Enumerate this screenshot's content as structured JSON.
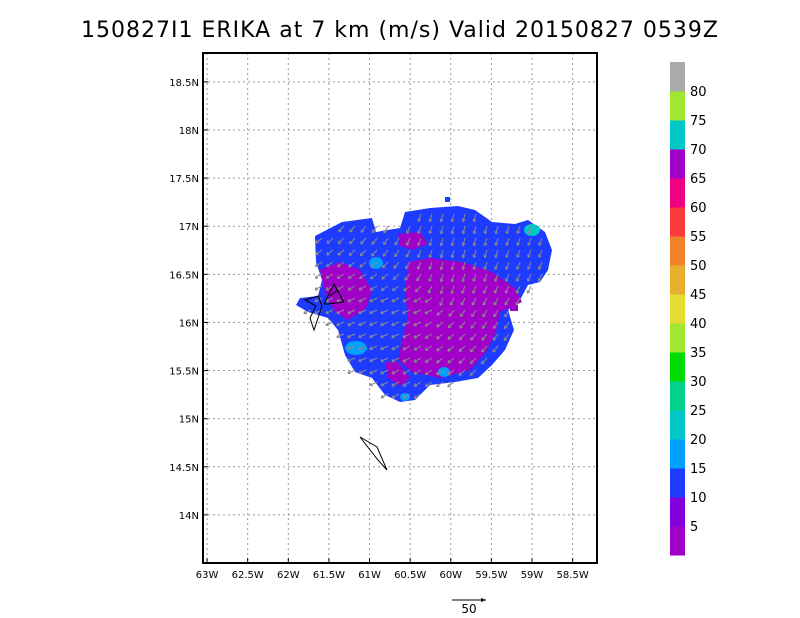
{
  "title": "150827I1 ERIKA at 7 km (m/s) Valid 20150827 0539Z",
  "lat_labels": [
    "18.5N",
    "18N",
    "17.5N",
    "17N",
    "16.5N",
    "16N",
    "15.5N",
    "15N",
    "14.5N",
    "14N"
  ],
  "lon_labels": [
    "63W",
    "62.5W",
    "62W",
    "61.5W",
    "61W",
    "60.5W",
    "60W",
    "59.5W",
    "59W",
    "58.5W"
  ],
  "lat_range": [
    13.5,
    18.8
  ],
  "lon_range": [
    -63.05,
    -58.2
  ],
  "colorbar": {
    "labels": [
      "5",
      "10",
      "15",
      "20",
      "25",
      "30",
      "35",
      "40",
      "45",
      "50",
      "55",
      "60",
      "65",
      "70",
      "75",
      "80"
    ],
    "colors": [
      "#a000c8",
      "#8200dc",
      "#1e3cff",
      "#00a0ff",
      "#00c8c8",
      "#00d28c",
      "#00dc00",
      "#a0e632",
      "#e6dc32",
      "#e6af2d",
      "#f08228",
      "#fa3c3c",
      "#f00082",
      "#a000c8",
      "#00c8c8",
      "#a0e632",
      "#aaaaaa"
    ]
  },
  "reference_vector": {
    "label": "50"
  },
  "colors": {
    "wind_10_15": "#1e3cff",
    "wind_5_10": "#a000c8",
    "wind_15_20": "#00a0ff",
    "wind_20_25": "#00c8c8",
    "wind_vector": "#8a8a8a"
  }
}
